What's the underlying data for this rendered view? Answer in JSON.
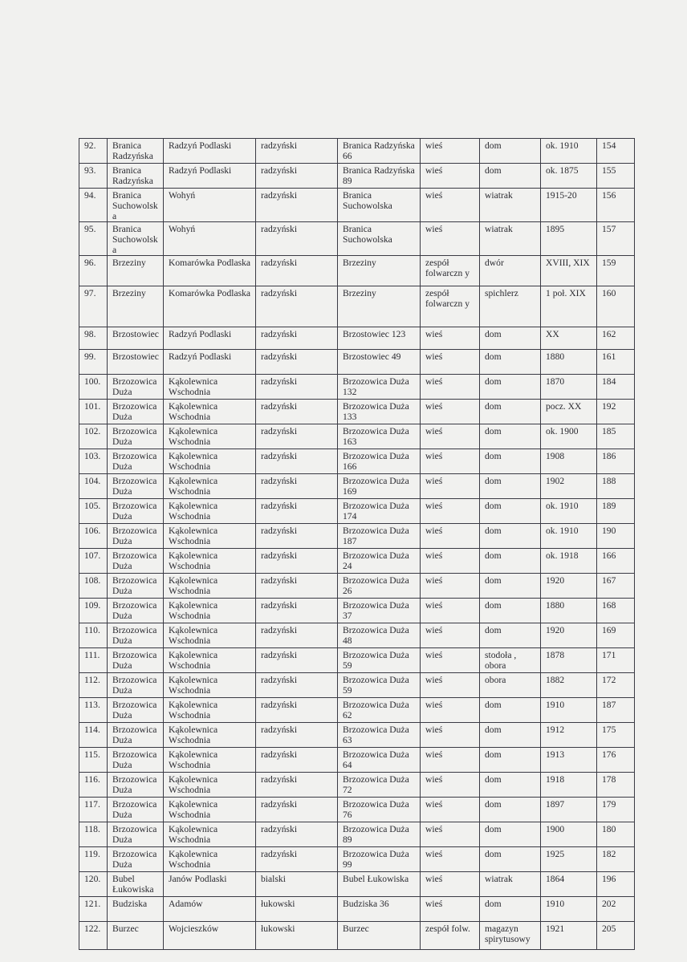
{
  "table": {
    "rows": [
      [
        "92.",
        "Branica Radzyńska",
        "Radzyń Podlaski",
        "radzyński",
        "Branica Radzyńska 66",
        "wieś",
        "dom",
        "ok. 1910",
        "154"
      ],
      [
        "93.",
        "Branica Radzyńska",
        "Radzyń Podlaski",
        "radzyński",
        "Branica Radzyńska 89",
        "wieś",
        "dom",
        "ok. 1875",
        "155"
      ],
      [
        "94.",
        "Branica Suchowolska",
        "Wohyń",
        "radzyński",
        "Branica Suchowolska",
        "wieś",
        "wiatrak",
        "1915-20",
        "156"
      ],
      [
        "95.",
        "Branica Suchowolska",
        "Wohyń",
        "radzyński",
        "Branica Suchowolska",
        "wieś",
        "wiatrak",
        "1895",
        "157"
      ],
      [
        "96.",
        "Brzeziny",
        "Komarówka Podlaska",
        "radzyński",
        "Brzeziny",
        "zespół folwarczn y",
        "dwór",
        "XVIII, XIX",
        "159"
      ],
      [
        "97.",
        "Brzeziny",
        "Komarówka Podlaska",
        "radzyński",
        "Brzeziny",
        "zespół folwarczn y",
        "spichlerz",
        "1 poł. XIX",
        "160"
      ],
      [
        "98.",
        "Brzostowiec",
        "Radzyń Podlaski",
        "radzyński",
        "Brzostowiec 123",
        "wieś",
        "dom",
        "XX",
        "162"
      ],
      [
        "99.",
        "Brzostowiec",
        "Radzyń Podlaski",
        "radzyński",
        "Brzostowiec 49",
        "wieś",
        "dom",
        "1880",
        "161"
      ],
      [
        "100.",
        "Brzozowica Duża",
        "Kąkolewnica Wschodnia",
        "radzyński",
        "Brzozowica Duża 132",
        "wieś",
        "dom",
        "1870",
        "184"
      ],
      [
        "101.",
        "Brzozowica Duża",
        "Kąkolewnica Wschodnia",
        "radzyński",
        "Brzozowica Duża 133",
        "wieś",
        "dom",
        "pocz. XX",
        "192"
      ],
      [
        "102.",
        "Brzozowica Duża",
        "Kąkolewnica Wschodnia",
        "radzyński",
        "Brzozowica Duża 163",
        "wieś",
        "dom",
        "ok. 1900",
        "185"
      ],
      [
        "103.",
        "Brzozowica Duża",
        "Kąkolewnica Wschodnia",
        "radzyński",
        "Brzozowica Duża 166",
        "wieś",
        "dom",
        "1908",
        "186"
      ],
      [
        "104.",
        "Brzozowica Duża",
        "Kąkolewnica Wschodnia",
        "radzyński",
        "Brzozowica Duża 169",
        "wieś",
        "dom",
        "1902",
        "188"
      ],
      [
        "105.",
        "Brzozowica Duża",
        "Kąkolewnica Wschodnia",
        "radzyński",
        "Brzozowica Duża 174",
        "wieś",
        "dom",
        "ok. 1910",
        "189"
      ],
      [
        "106.",
        "Brzozowica Duża",
        "Kąkolewnica Wschodnia",
        "radzyński",
        "Brzozowica Duża 187",
        "wieś",
        "dom",
        "ok. 1910",
        "190"
      ],
      [
        "107.",
        "Brzozowica Duża",
        "Kąkolewnica Wschodnia",
        "radzyński",
        "Brzozowica Duża 24",
        "wieś",
        "dom",
        "ok. 1918",
        "166"
      ],
      [
        "108.",
        "Brzozowica Duża",
        "Kąkolewnica Wschodnia",
        "radzyński",
        "Brzozowica Duża 26",
        "wieś",
        "dom",
        "1920",
        "167"
      ],
      [
        "109.",
        "Brzozowica Duża",
        "Kąkolewnica Wschodnia",
        "radzyński",
        "Brzozowica Duża 37",
        "wieś",
        "dom",
        "1880",
        "168"
      ],
      [
        "110.",
        "Brzozowica Duża",
        "Kąkolewnica Wschodnia",
        "radzyński",
        "Brzozowica Duża 48",
        "wieś",
        "dom",
        "1920",
        "169"
      ],
      [
        "111.",
        "Brzozowica Duża",
        "Kąkolewnica Wschodnia",
        "radzyński",
        "Brzozowica Duża 59",
        "wieś",
        "stodoła , obora",
        "1878",
        "171"
      ],
      [
        "112.",
        "Brzozowica Duża",
        "Kąkolewnica Wschodnia",
        "radzyński",
        "Brzozowica Duża 59",
        "wieś",
        "obora",
        "1882",
        "172"
      ],
      [
        "113.",
        "Brzozowica Duża",
        "Kąkolewnica Wschodnia",
        "radzyński",
        "Brzozowica Duża 62",
        "wieś",
        "dom",
        "1910",
        "187"
      ],
      [
        "114.",
        "Brzozowica Duża",
        "Kąkolewnica Wschodnia",
        "radzyński",
        "Brzozowica Duża 63",
        "wieś",
        "dom",
        "1912",
        "175"
      ],
      [
        "115.",
        "Brzozowica Duża",
        "Kąkolewnica Wschodnia",
        "radzyński",
        "Brzozowica Duża 64",
        "wieś",
        "dom",
        "1913",
        "176"
      ],
      [
        "116.",
        "Brzozowica Duża",
        "Kąkolewnica Wschodnia",
        "radzyński",
        "Brzozowica Duża 72",
        "wieś",
        "dom",
        "1918",
        "178"
      ],
      [
        "117.",
        "Brzozowica Duża",
        "Kąkolewnica Wschodnia",
        "radzyński",
        "Brzozowica Duża 76",
        "wieś",
        "dom",
        "1897",
        "179"
      ],
      [
        "118.",
        "Brzozowica Duża",
        "Kąkolewnica Wschodnia",
        "radzyński",
        "Brzozowica Duża 89",
        "wieś",
        "dom",
        "1900",
        "180"
      ],
      [
        "119.",
        "Brzozowica Duża",
        "Kąkolewnica Wschodnia",
        "radzyński",
        "Brzozowica Duża 99",
        "wieś",
        "dom",
        "1925",
        "182"
      ],
      [
        "120.",
        "Bubel Łukowiska",
        "Janów Podlaski",
        "bialski",
        "Bubel Łukowiska",
        "wieś",
        "wiatrak",
        "1864",
        "196"
      ],
      [
        "121.",
        "Budziska",
        "Adamów",
        "łukowski",
        "Budziska 36",
        "wieś",
        "dom",
        "1910",
        "202"
      ],
      [
        "122.",
        "Burzec",
        "Wojcieszków",
        "łukowski",
        "Burzec",
        "zespół folw.",
        "magazyn spirytusowy",
        "1921",
        "205"
      ]
    ]
  }
}
